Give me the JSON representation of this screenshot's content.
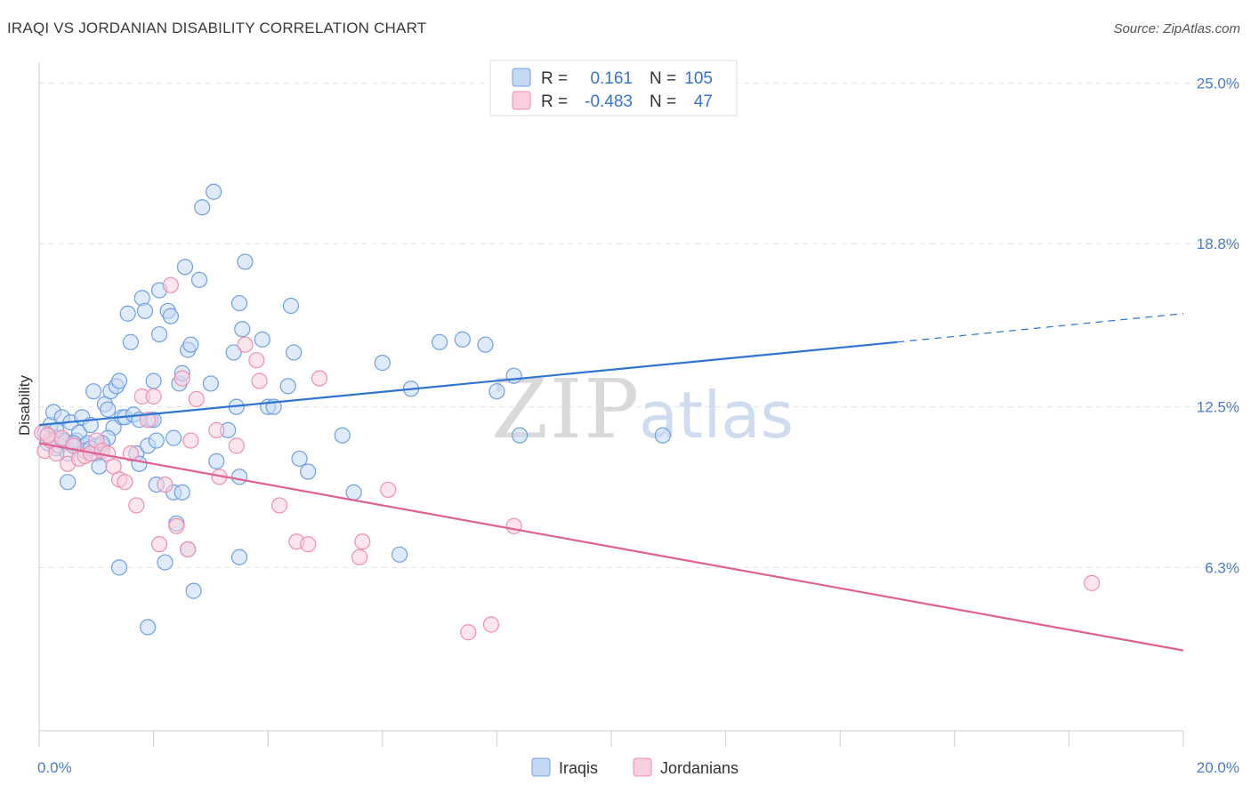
{
  "title": "IRAQI VS JORDANIAN DISABILITY CORRELATION CHART",
  "source": "Source: ZipAtlas.com",
  "watermark": {
    "zip": "ZIP",
    "atlas": "atlas"
  },
  "legend": {
    "rows": [
      {
        "r_label": "R =",
        "r_value": "0.161",
        "n_label": "N =",
        "n_value": "105",
        "color": "#6fa0e0",
        "fill": "#c5d9f5"
      },
      {
        "r_label": "R =",
        "r_value": "-0.483",
        "n_label": "N =",
        "n_value": "47",
        "color": "#ee8fb0",
        "fill": "#f9cfdd"
      }
    ]
  },
  "bottom_legend": [
    {
      "label": "Iraqis",
      "color": "#6fa0e0",
      "fill": "#c5d9f5"
    },
    {
      "label": "Jordanians",
      "color": "#ee8fb0",
      "fill": "#f9cfdd"
    }
  ],
  "chart_data": {
    "type": "scatter",
    "ylabel": "Disability",
    "xlim": [
      0,
      20
    ],
    "ylim": [
      0,
      25.8
    ],
    "x_tick_labels": [
      {
        "value": 0,
        "label": "0.0%"
      },
      {
        "value": 20,
        "label": "20.0%"
      }
    ],
    "y_ticks": [
      {
        "value": 6.3,
        "label": "6.3%"
      },
      {
        "value": 12.5,
        "label": "12.5%"
      },
      {
        "value": 18.8,
        "label": "18.8%"
      },
      {
        "value": 25.0,
        "label": "25.0%"
      }
    ],
    "grid": true,
    "series": [
      {
        "name": "Iraqis",
        "stroke": "#6fa0e0",
        "fill": "#c5d9f5",
        "trend_color": "#2f74d0",
        "trend": {
          "x0": 0,
          "y0": 11.8,
          "x1": 15.0,
          "y1": 15.0,
          "x_dash_end": 20.0,
          "y_dash_end": 16.1
        },
        "points": [
          [
            0.1,
            11.5
          ],
          [
            0.15,
            11.1
          ],
          [
            0.2,
            11.8
          ],
          [
            0.25,
            12.3
          ],
          [
            0.3,
            11.3
          ],
          [
            0.3,
            10.9
          ],
          [
            0.35,
            11.0
          ],
          [
            0.4,
            12.1
          ],
          [
            0.45,
            11.2
          ],
          [
            0.5,
            10.7
          ],
          [
            0.5,
            9.6
          ],
          [
            0.55,
            11.9
          ],
          [
            0.6,
            11.0
          ],
          [
            0.65,
            11.2
          ],
          [
            0.7,
            11.5
          ],
          [
            0.75,
            12.1
          ],
          [
            0.8,
            11.0
          ],
          [
            0.85,
            11.1
          ],
          [
            0.9,
            11.8
          ],
          [
            0.95,
            13.1
          ],
          [
            1.0,
            10.7
          ],
          [
            1.05,
            10.2
          ],
          [
            1.1,
            11.0
          ],
          [
            1.15,
            12.6
          ],
          [
            1.2,
            12.4
          ],
          [
            1.25,
            13.1
          ],
          [
            1.3,
            11.7
          ],
          [
            1.35,
            13.3
          ],
          [
            1.4,
            13.5
          ],
          [
            1.45,
            12.1
          ],
          [
            1.5,
            12.1
          ],
          [
            1.55,
            16.1
          ],
          [
            1.6,
            15.0
          ],
          [
            1.65,
            12.2
          ],
          [
            1.7,
            10.7
          ],
          [
            1.75,
            10.3
          ],
          [
            1.8,
            16.7
          ],
          [
            1.85,
            16.2
          ],
          [
            1.9,
            11.0
          ],
          [
            1.95,
            12.0
          ],
          [
            2.0,
            13.5
          ],
          [
            2.05,
            11.2
          ],
          [
            2.1,
            15.3
          ],
          [
            2.1,
            17.0
          ],
          [
            2.2,
            6.5
          ],
          [
            2.25,
            16.2
          ],
          [
            2.3,
            16.0
          ],
          [
            2.35,
            11.3
          ],
          [
            2.4,
            8.0
          ],
          [
            2.45,
            13.4
          ],
          [
            2.5,
            13.8
          ],
          [
            2.55,
            17.9
          ],
          [
            2.6,
            14.7
          ],
          [
            2.65,
            14.9
          ],
          [
            2.7,
            5.4
          ],
          [
            2.8,
            17.4
          ],
          [
            2.85,
            20.2
          ],
          [
            3.0,
            13.4
          ],
          [
            3.05,
            20.8
          ],
          [
            3.1,
            10.4
          ],
          [
            3.3,
            11.6
          ],
          [
            3.4,
            14.6
          ],
          [
            3.45,
            12.5
          ],
          [
            3.5,
            16.5
          ],
          [
            3.55,
            15.5
          ],
          [
            3.6,
            18.1
          ],
          [
            3.9,
            15.1
          ],
          [
            4.0,
            12.5
          ],
          [
            4.1,
            12.5
          ],
          [
            4.35,
            13.3
          ],
          [
            4.4,
            16.4
          ],
          [
            4.45,
            14.6
          ],
          [
            4.55,
            10.5
          ],
          [
            4.7,
            10.0
          ],
          [
            5.3,
            11.4
          ],
          [
            5.5,
            9.2
          ],
          [
            6.0,
            14.2
          ],
          [
            6.5,
            13.2
          ],
          [
            7.0,
            15.0
          ],
          [
            7.4,
            15.1
          ],
          [
            7.8,
            14.9
          ],
          [
            8.0,
            13.1
          ],
          [
            8.3,
            13.7
          ],
          [
            8.4,
            11.4
          ],
          [
            10.9,
            11.4
          ],
          [
            0.2,
            11.2
          ],
          [
            0.4,
            11.2
          ],
          [
            0.6,
            11.1
          ],
          [
            0.8,
            10.8
          ],
          [
            1.0,
            11.0
          ],
          [
            1.2,
            11.3
          ],
          [
            1.75,
            12.0
          ],
          [
            2.05,
            9.5
          ],
          [
            2.35,
            9.2
          ],
          [
            3.5,
            9.8
          ],
          [
            3.5,
            6.7
          ],
          [
            6.3,
            6.8
          ],
          [
            1.9,
            4.0
          ],
          [
            1.4,
            6.3
          ],
          [
            2.5,
            9.2
          ],
          [
            2.0,
            12.0
          ],
          [
            2.6,
            7.0
          ],
          [
            1.1,
            11.1
          ],
          [
            0.3,
            11.6
          ],
          [
            0.9,
            10.9
          ]
        ]
      },
      {
        "name": "Jordanians",
        "stroke": "#ee8fb0",
        "fill": "#f9cfdd",
        "trend_color": "#e06090",
        "trend": {
          "x0": 0,
          "y0": 11.1,
          "x1": 20.0,
          "y1": 3.1
        },
        "points": [
          [
            0.1,
            10.8
          ],
          [
            0.2,
            11.2
          ],
          [
            0.3,
            10.7
          ],
          [
            0.4,
            11.3
          ],
          [
            0.5,
            10.3
          ],
          [
            0.6,
            11.0
          ],
          [
            0.7,
            10.5
          ],
          [
            0.8,
            10.6
          ],
          [
            0.9,
            10.7
          ],
          [
            1.0,
            11.2
          ],
          [
            1.1,
            10.8
          ],
          [
            1.2,
            10.7
          ],
          [
            1.3,
            10.2
          ],
          [
            1.4,
            9.7
          ],
          [
            1.5,
            9.6
          ],
          [
            1.6,
            10.7
          ],
          [
            1.7,
            8.7
          ],
          [
            1.8,
            12.9
          ],
          [
            1.9,
            12.0
          ],
          [
            2.0,
            12.9
          ],
          [
            2.1,
            7.2
          ],
          [
            2.2,
            9.5
          ],
          [
            2.3,
            17.2
          ],
          [
            2.4,
            7.9
          ],
          [
            2.5,
            13.6
          ],
          [
            2.6,
            7.0
          ],
          [
            2.65,
            11.2
          ],
          [
            2.75,
            12.8
          ],
          [
            3.1,
            11.6
          ],
          [
            3.15,
            9.8
          ],
          [
            3.45,
            11.0
          ],
          [
            3.6,
            14.9
          ],
          [
            3.8,
            14.3
          ],
          [
            3.85,
            13.5
          ],
          [
            4.2,
            8.7
          ],
          [
            4.5,
            7.3
          ],
          [
            4.7,
            7.2
          ],
          [
            4.9,
            13.6
          ],
          [
            5.6,
            6.7
          ],
          [
            5.65,
            7.3
          ],
          [
            6.1,
            9.3
          ],
          [
            7.5,
            3.8
          ],
          [
            7.9,
            4.1
          ],
          [
            8.3,
            7.9
          ],
          [
            18.4,
            5.7
          ],
          [
            0.05,
            11.5
          ],
          [
            0.15,
            11.4
          ]
        ]
      }
    ]
  }
}
